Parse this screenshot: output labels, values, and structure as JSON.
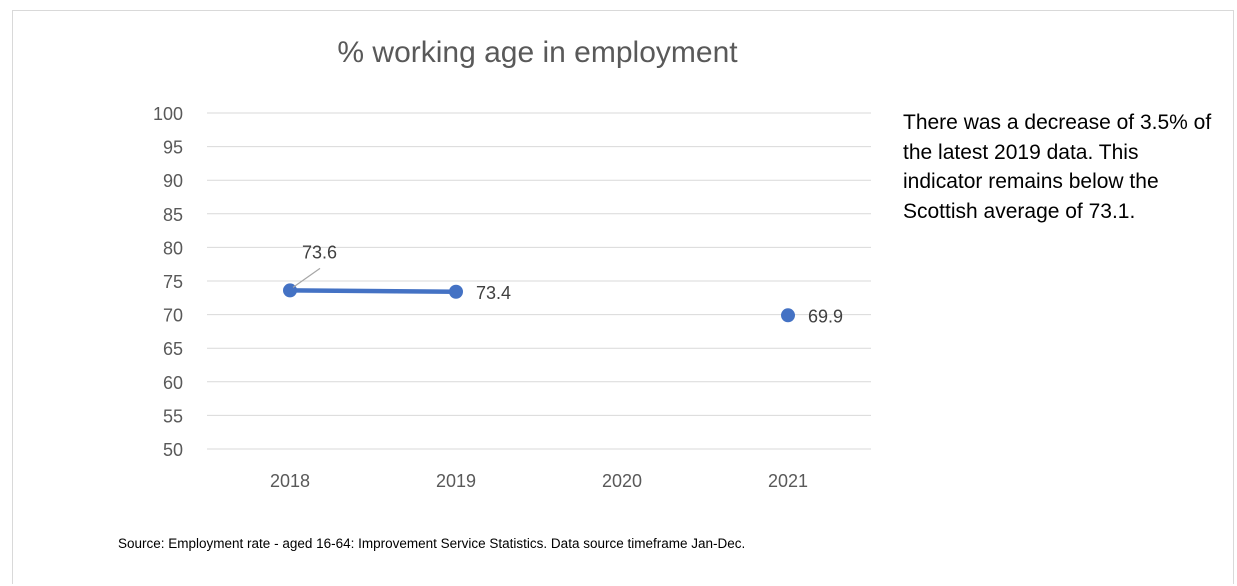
{
  "chart_data": {
    "type": "line",
    "title": "% working age in employment",
    "categories": [
      "2018",
      "2019",
      "2020",
      "2021"
    ],
    "series": [
      {
        "values": [
          73.6,
          73.4,
          null,
          69.9
        ],
        "labels": [
          "73.6",
          "73.4",
          "",
          "69.9"
        ]
      }
    ],
    "ylim": [
      50,
      100
    ],
    "yticks": [
      "50",
      "55",
      "60",
      "65",
      "70",
      "75",
      "80",
      "85",
      "90",
      "95",
      "100"
    ],
    "grid": true,
    "legend": "none",
    "colors": {
      "series": "#4472C4",
      "grid": "#d9d9d9",
      "axis_text": "#595959",
      "label_text": "#404040"
    }
  },
  "annotation": {
    "text": "There was a decrease of 3.5% of the latest 2019 data. This indicator remains below the Scottish average of 73.1."
  },
  "source": {
    "text": "Source: Employment rate - aged 16-64: Improvement Service  Statistics. Data source timeframe Jan-Dec."
  }
}
